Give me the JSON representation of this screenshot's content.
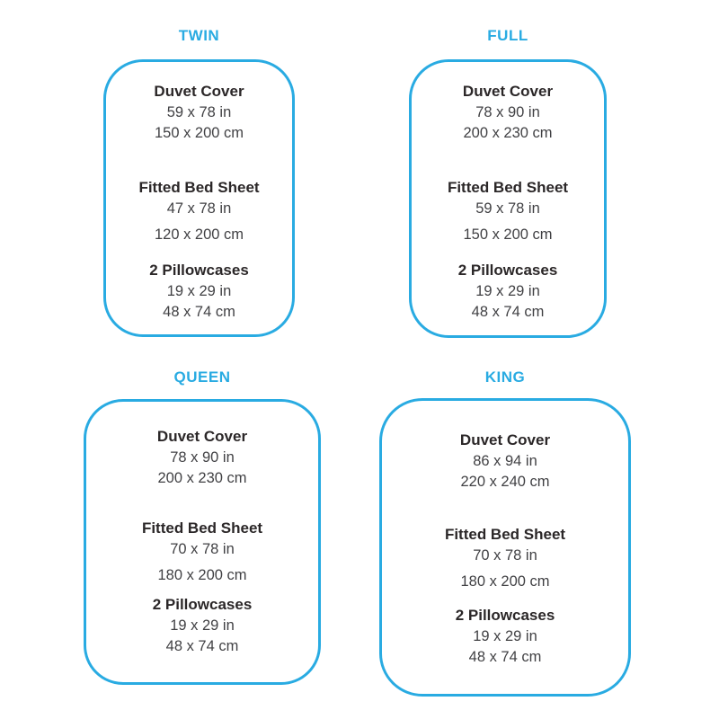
{
  "page": {
    "background_color": "#ffffff",
    "accent_color": "#29ABE2",
    "heading_text_color": "#2b2728",
    "value_text_color": "#414144"
  },
  "panels": [
    {
      "id": "twin",
      "title": "TWIN",
      "sections": [
        {
          "label": "Duvet Cover",
          "imperial": "59 x 78 in",
          "metric": "150 x 200 cm"
        },
        {
          "label": "Fitted Bed Sheet",
          "imperial": "47 x 78 in",
          "metric": "120 x 200 cm"
        },
        {
          "label": "2 Pillowcases",
          "imperial": "19 x 29 in",
          "metric": "48 x 74 cm"
        }
      ]
    },
    {
      "id": "full",
      "title": "FULL",
      "sections": [
        {
          "label": "Duvet Cover",
          "imperial": "78 x 90 in",
          "metric": "200 x 230 cm"
        },
        {
          "label": "Fitted Bed Sheet",
          "imperial": "59 x 78 in",
          "metric": "150 x 200 cm"
        },
        {
          "label": "2 Pillowcases",
          "imperial": "19 x 29 in",
          "metric": "48 x 74 cm"
        }
      ]
    },
    {
      "id": "queen",
      "title": "QUEEN",
      "sections": [
        {
          "label": "Duvet Cover",
          "imperial": "78 x 90 in",
          "metric": "200 x 230 cm"
        },
        {
          "label": "Fitted Bed Sheet",
          "imperial": "70 x 78 in",
          "metric": "180 x 200 cm"
        },
        {
          "label": "2 Pillowcases",
          "imperial": "19 x 29 in",
          "metric": "48 x 74 cm"
        }
      ]
    },
    {
      "id": "king",
      "title": "KING",
      "sections": [
        {
          "label": "Duvet Cover",
          "imperial": "86 x 94 in",
          "metric": "220 x 240 cm"
        },
        {
          "label": "Fitted Bed Sheet",
          "imperial": "70 x 78 in",
          "metric": "180 x 200 cm"
        },
        {
          "label": "2 Pillowcases",
          "imperial": "19 x 29 in",
          "metric": "48 x 74 cm"
        }
      ]
    }
  ]
}
